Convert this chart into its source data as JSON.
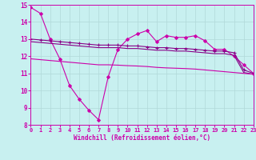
{
  "background_color": "#c8f0f0",
  "grid_color": "#b0d8d8",
  "line_color": "#cc00aa",
  "line_color2": "#880088",
  "x_min": 0,
  "x_max": 23,
  "y_min": 8,
  "y_max": 15,
  "xlabel": "Windchill (Refroidissement éolien,°C)",
  "x_ticks": [
    0,
    1,
    2,
    3,
    4,
    5,
    6,
    7,
    8,
    9,
    10,
    11,
    12,
    13,
    14,
    15,
    16,
    17,
    18,
    19,
    20,
    21,
    22,
    23
  ],
  "y_ticks": [
    8,
    9,
    10,
    11,
    12,
    13,
    14,
    15
  ],
  "series": [
    {
      "x": [
        0,
        1,
        2,
        3,
        4,
        5,
        6,
        7,
        8,
        9,
        10,
        11,
        12,
        13,
        14,
        15,
        16,
        17,
        18,
        19,
        20,
        21,
        22,
        23
      ],
      "y": [
        14.85,
        14.5,
        13.0,
        11.85,
        10.3,
        9.5,
        8.85,
        8.3,
        10.8,
        12.4,
        13.0,
        13.3,
        13.5,
        12.85,
        13.2,
        13.1,
        13.1,
        13.2,
        12.9,
        12.4,
        12.4,
        12.0,
        11.5,
        11.0
      ],
      "marker": "D",
      "markersize": 2.0,
      "linewidth": 0.8,
      "color": "#cc00aa"
    },
    {
      "x": [
        0,
        1,
        2,
        3,
        4,
        5,
        6,
        7,
        8,
        9,
        10,
        11,
        12,
        13,
        14,
        15,
        16,
        17,
        18,
        19,
        20,
        21,
        22,
        23
      ],
      "y": [
        13.0,
        12.95,
        12.9,
        12.85,
        12.8,
        12.75,
        12.7,
        12.65,
        12.65,
        12.65,
        12.6,
        12.6,
        12.55,
        12.5,
        12.5,
        12.45,
        12.45,
        12.4,
        12.35,
        12.3,
        12.3,
        12.2,
        11.2,
        11.0
      ],
      "marker": "+",
      "markersize": 3.5,
      "linewidth": 0.8,
      "color": "#880088"
    },
    {
      "x": [
        0,
        1,
        2,
        3,
        4,
        5,
        6,
        7,
        8,
        9,
        10,
        11,
        12,
        13,
        14,
        15,
        16,
        17,
        18,
        19,
        20,
        21,
        22,
        23
      ],
      "y": [
        12.85,
        12.8,
        12.75,
        12.7,
        12.65,
        12.6,
        12.55,
        12.5,
        12.5,
        12.5,
        12.45,
        12.45,
        12.4,
        12.35,
        12.35,
        12.3,
        12.3,
        12.25,
        12.2,
        12.15,
        12.15,
        12.05,
        11.05,
        10.95
      ],
      "marker": null,
      "markersize": 0,
      "linewidth": 0.8,
      "color": "#880088"
    },
    {
      "x": [
        0,
        1,
        2,
        3,
        4,
        5,
        6,
        7,
        8,
        9,
        10,
        11,
        12,
        13,
        14,
        15,
        16,
        17,
        18,
        19,
        20,
        21,
        22,
        23
      ],
      "y": [
        11.85,
        11.8,
        11.75,
        11.7,
        11.65,
        11.6,
        11.55,
        11.5,
        11.5,
        11.48,
        11.45,
        11.43,
        11.4,
        11.35,
        11.32,
        11.3,
        11.28,
        11.25,
        11.2,
        11.15,
        11.1,
        11.05,
        11.0,
        10.95
      ],
      "marker": null,
      "markersize": 0,
      "linewidth": 0.8,
      "color": "#cc00aa"
    }
  ]
}
